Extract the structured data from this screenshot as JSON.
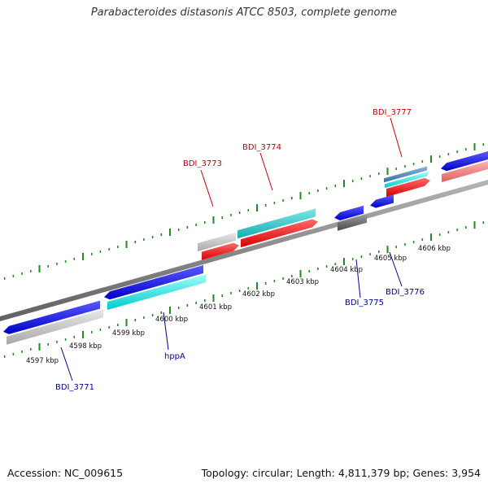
{
  "header": {
    "title": "Parabacteroides distasonis ATCC 8503, complete genome"
  },
  "footer": {
    "accession": "Accession: NC_009615",
    "summary": "Topology: circular; Length: 4,811,379 bp; Genes: 3,954"
  },
  "colors": {
    "forward_gene": "#ff0000",
    "reverse_gene": "#0000ee",
    "forward_label": "#cc0000",
    "reverse_label": "#000099",
    "backbone": "#808080",
    "tick": "#228b22",
    "rna_cyan": "#00e5e5",
    "pseudo_gray": "#c8c8c8",
    "dark_gray": "#606060",
    "steel_blue": "#4682b4",
    "light_red": "#f08080"
  },
  "diagram": {
    "kbp_labels": [
      "4597 kbp",
      "4598 kbp",
      "4599 kbp",
      "4600 kbp",
      "4601 kbp",
      "4602 kbp",
      "4603 kbp",
      "4604 kbp",
      "4605 kbp",
      "4606 kbp"
    ],
    "gene_labels": [
      {
        "text": "BDI_3771",
        "strand": "reverse"
      },
      {
        "text": "hppA",
        "strand": "reverse"
      },
      {
        "text": "BDI_3773",
        "strand": "forward"
      },
      {
        "text": "BDI_3774",
        "strand": "forward"
      },
      {
        "text": "BDI_3775",
        "strand": "reverse"
      },
      {
        "text": "BDI_3776",
        "strand": "reverse"
      },
      {
        "text": "BDI_3777",
        "strand": "forward"
      }
    ]
  }
}
